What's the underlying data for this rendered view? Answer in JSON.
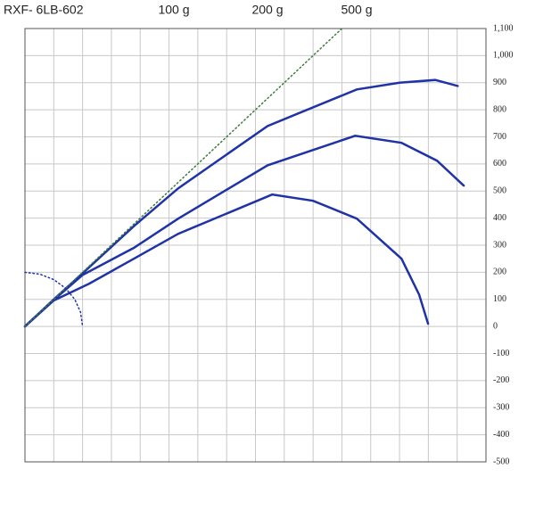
{
  "chart_data": {
    "type": "line",
    "title": "RXF- 6LB-602",
    "xlim": [
      0,
      1600
    ],
    "xticks": [
      0,
      100,
      200,
      300,
      400,
      500,
      600,
      700,
      800,
      900,
      1000,
      1100,
      1200,
      1300,
      1400,
      1500,
      1600
    ],
    "ylim": [
      -500,
      1100
    ],
    "yticks": [
      {
        "value": 1100,
        "label": "1,100"
      },
      {
        "value": 1000,
        "label": "1,000"
      },
      900,
      800,
      700,
      600,
      500,
      400,
      300,
      200,
      100,
      0,
      -100,
      -200,
      -300,
      -400,
      -500
    ],
    "grid": true,
    "series": [
      {
        "name": "100 g",
        "color": "#1f33a6",
        "x": [
          0,
          100,
          200,
          378,
          532,
          842,
          1152,
          1300,
          1424,
          1502
        ],
        "values": [
          0,
          100,
          196,
          370,
          510,
          740,
          875,
          900,
          910,
          888
        ]
      },
      {
        "name": "200 g",
        "color": "#1f33a6",
        "x": [
          0,
          100,
          200,
          378,
          532,
          842,
          1146,
          1307,
          1430,
          1523
        ],
        "values": [
          0,
          98,
          190,
          290,
          398,
          595,
          704,
          678,
          612,
          520
        ]
      },
      {
        "name": "500 g",
        "color": "#1f33a6",
        "x": [
          0,
          100,
          223,
          378,
          532,
          858,
          1000,
          1152,
          1307,
          1368,
          1399
        ],
        "values": [
          0,
          96,
          158,
          250,
          342,
          487,
          464,
          398,
          250,
          118,
          10
        ]
      },
      {
        "color": "#3d7a3d",
        "style": "dotted",
        "x": [
          0,
          1100
        ],
        "values": [
          0,
          1100
        ]
      },
      {
        "color": "#1f33a6",
        "style": "dotted",
        "x": [
          0,
          52,
          100,
          141,
          173,
          193,
          200
        ],
        "values": [
          200,
          193,
          173,
          141,
          100,
          52,
          0
        ]
      }
    ]
  }
}
